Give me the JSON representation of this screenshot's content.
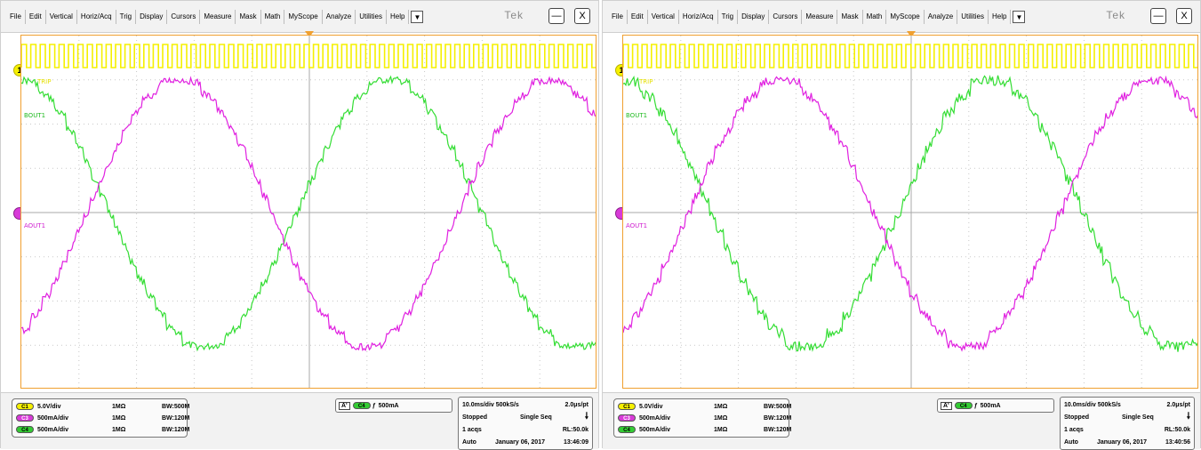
{
  "menu": [
    "File",
    "Edit",
    "Vertical",
    "Horiz/Acq",
    "Trig",
    "Display",
    "Cursors",
    "Measure",
    "Mask",
    "Math",
    "MyScope",
    "Analyze",
    "Utilities",
    "Help"
  ],
  "brand": "Tek",
  "window_buttons": {
    "minimize": "—",
    "close": "X"
  },
  "panels": [
    {
      "channel_labels": {
        "ch1": "TRIP",
        "ch4": "BOUT1",
        "ch3": "AOUT1"
      },
      "marker_ch1": "1",
      "channels": [
        {
          "chip": "C1",
          "scale": "5.0V/div",
          "impedance": "1MΩ",
          "bandwidth": "BW:500M",
          "color": "#f5f000"
        },
        {
          "chip": "C3",
          "scale": "500mA/div",
          "impedance": "1MΩ",
          "bandwidth": "BW:120M",
          "color": "#d83ad8"
        },
        {
          "chip": "C4",
          "scale": "500mA/div",
          "impedance": "1MΩ",
          "bandwidth": "BW:120M",
          "color": "#33cc33"
        }
      ],
      "trigger": {
        "label": "A'",
        "chip": "C4",
        "edge": "ƒ",
        "level": "500mA"
      },
      "acq": {
        "timebase": "10.0ms/div 500kS/s",
        "points": "2.0μs/pt",
        "state": "Stopped",
        "mode": "Single Seq",
        "acqs": "1 acqs",
        "record": "RL:50.0k",
        "trigger_mode": "Auto",
        "date": "January 06, 2017",
        "time": "13:46:09"
      }
    },
    {
      "channel_labels": {
        "ch1": "TRIP",
        "ch4": "BOUT1",
        "ch3": "AOUT1"
      },
      "marker_ch1": "1",
      "channels": [
        {
          "chip": "C1",
          "scale": "5.0V/div",
          "impedance": "1MΩ",
          "bandwidth": "BW:500M",
          "color": "#f5f000"
        },
        {
          "chip": "C3",
          "scale": "500mA/div",
          "impedance": "1MΩ",
          "bandwidth": "BW:120M",
          "color": "#d83ad8"
        },
        {
          "chip": "C4",
          "scale": "500mA/div",
          "impedance": "1MΩ",
          "bandwidth": "BW:120M",
          "color": "#33cc33"
        }
      ],
      "trigger": {
        "label": "A'",
        "chip": "C4",
        "edge": "ƒ",
        "level": "500mA"
      },
      "acq": {
        "timebase": "10.0ms/div 500kS/s",
        "points": "2.0μs/pt",
        "state": "Stopped",
        "mode": "Single Seq",
        "acqs": "1 acqs",
        "record": "RL:50.0k",
        "trigger_mode": "Auto",
        "date": "January 06, 2017",
        "time": "13:40:56"
      }
    }
  ],
  "colors": {
    "ch1": "#f5f000",
    "ch3": "#e020e0",
    "ch4": "#33dd33",
    "grid": "#c8c8c8",
    "frame": "#f0a030"
  }
}
